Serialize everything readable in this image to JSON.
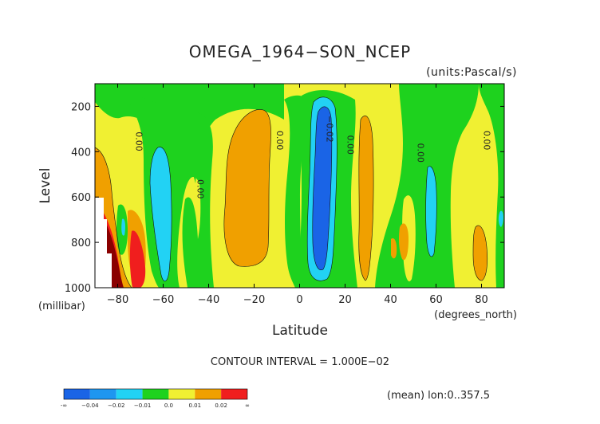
{
  "chart_data": {
    "type": "heatmap",
    "title": "OMEGA_1964−SON_NCEP",
    "units": "(units:Pascal/s)",
    "xlabel": "Latitude",
    "ylabel": "Level",
    "x_unit_label": "(degrees_north)",
    "y_unit_label": "(millibar)",
    "xlim": [
      -90,
      90
    ],
    "ylim": [
      1000,
      100
    ],
    "x_ticks": [
      -80,
      -60,
      -40,
      -20,
      0,
      20,
      40,
      60,
      80
    ],
    "x_tick_labels": [
      "−80",
      "−60",
      "−40",
      "−20",
      "0",
      "20",
      "40",
      "60",
      "80"
    ],
    "y_ticks": [
      200,
      400,
      600,
      800,
      1000
    ],
    "y_tick_labels": [
      "200",
      "400",
      "600",
      "800",
      "1000"
    ],
    "contour_interval_text": "CONTOUR INTERVAL = 1.000E−02",
    "footer_note": "(mean) lon:0..357.5",
    "contour_labels": [
      {
        "text": "0.00",
        "lat": -72,
        "lev": 355
      },
      {
        "text": "0.00",
        "lat": -45,
        "lev": 565
      },
      {
        "text": "0.00",
        "lat": -10,
        "lev": 350
      },
      {
        "text": "−0.02",
        "lat": 12,
        "lev": 300
      },
      {
        "text": "0.00",
        "lat": 21,
        "lev": 370
      },
      {
        "text": "0.00",
        "lat": 52,
        "lev": 405
      },
      {
        "text": "0.00",
        "lat": 81,
        "lev": 350
      }
    ],
    "colorbar": {
      "colors": [
        "#1a64e6",
        "#1e96f0",
        "#22d2f4",
        "#1ed21e",
        "#f0f032",
        "#f0a000",
        "#f01e1e"
      ],
      "labels": [
        "-∞",
        "−0.04",
        "−0.02",
        "−0.01",
        "0.0",
        "0.01",
        "0.02",
        "∞"
      ]
    },
    "levels_legend": {
      "green": "-0.01 to 0.0",
      "yellow": "0.0 to 0.01",
      "orange": "0.01 to 0.02",
      "red": "> 0.02",
      "cyan": "-0.02 to -0.01",
      "blue": "< -0.02"
    },
    "regions": [
      {
        "color": "yellow",
        "lat_range": [
          -90,
          90
        ],
        "lev_range": [
          100,
          1000
        ]
      },
      {
        "color": "orange",
        "lat_range": [
          -90,
          -74
        ],
        "lev_range": [
          330,
          1000
        ]
      },
      {
        "color": "green",
        "lat_range": [
          -88,
          0
        ],
        "lev_range": [
          100,
          300
        ]
      },
      {
        "color": "green",
        "lat_range": [
          -76,
          -32
        ],
        "lev_range": [
          300,
          1000
        ]
      },
      {
        "color": "cyan",
        "lat_range": [
          -65,
          -55
        ],
        "lev_range": [
          330,
          950
        ]
      },
      {
        "color": "green",
        "lat_range": [
          -12,
          0
        ],
        "lev_range": [
          300,
          1000
        ]
      },
      {
        "color": "orange",
        "lat_range": [
          -32,
          -10
        ],
        "lev_range": [
          220,
          870
        ]
      },
      {
        "color": "green",
        "lat_range": [
          0,
          30
        ],
        "lev_range": [
          100,
          1000
        ]
      },
      {
        "color": "cyan",
        "lat_range": [
          4,
          20
        ],
        "lev_range": [
          150,
          970
        ]
      },
      {
        "color": "blue",
        "lat_range": [
          7,
          16
        ],
        "lev_range": [
          190,
          940
        ]
      },
      {
        "color": "orange",
        "lat_range": [
          25,
          32
        ],
        "lev_range": [
          270,
          940
        ]
      },
      {
        "color": "green",
        "lat_range": [
          40,
          58
        ],
        "lev_range": [
          100,
          1000
        ]
      },
      {
        "color": "cyan",
        "lat_range": [
          51,
          58
        ],
        "lev_range": [
          470,
          900
        ]
      },
      {
        "color": "orange",
        "lat_range": [
          40,
          44
        ],
        "lev_range": [
          690,
          900
        ]
      },
      {
        "color": "green",
        "lat_range": [
          72,
          90
        ],
        "lev_range": [
          100,
          240
        ]
      },
      {
        "color": "green",
        "lat_range": [
          86,
          90
        ],
        "lev_range": [
          240,
          1000
        ]
      },
      {
        "color": "orange",
        "lat_range": [
          76,
          82
        ],
        "lev_range": [
          700,
          1000
        ]
      },
      {
        "color": "red",
        "lat_range": [
          -88,
          -79
        ],
        "lev_range": [
          680,
          1000
        ]
      },
      {
        "color": "red",
        "lat_range": [
          -76,
          -70
        ],
        "lev_range": [
          650,
          1000
        ]
      }
    ]
  }
}
